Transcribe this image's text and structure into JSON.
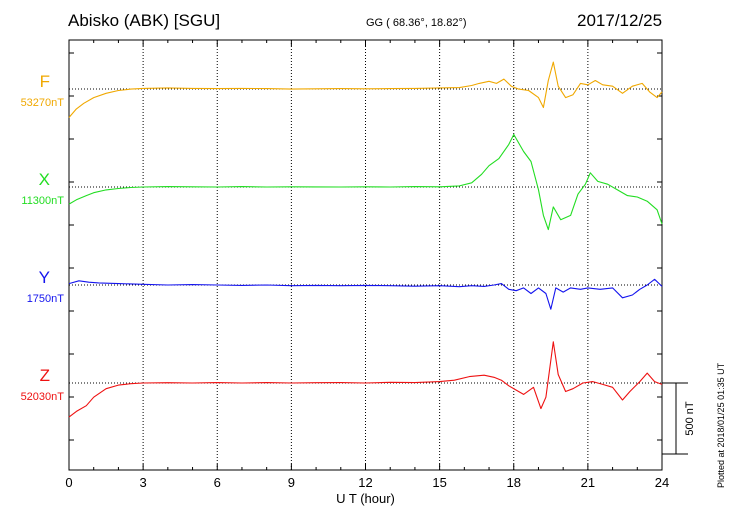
{
  "header": {
    "station": "Abisko (ABK)  [SGU]",
    "coords": "GG ( 68.36°,  18.82°)",
    "date": "2017/12/25"
  },
  "plotted_note": "Plotted at 2018/01/25 01:35 UT",
  "chart_data": {
    "type": "line",
    "xlabel": "U T (hour)",
    "xlim": [
      0,
      24
    ],
    "xticks": [
      0,
      3,
      6,
      9,
      12,
      15,
      18,
      21,
      24
    ],
    "scale_bar": "500 nT",
    "grid": "dotted",
    "series": [
      {
        "name": "F",
        "baseline": "53270nT",
        "color": "#f0a800",
        "offset_nT": -1060,
        "points": [
          [
            0,
            -200
          ],
          [
            0.3,
            -140
          ],
          [
            0.6,
            -100
          ],
          [
            1,
            -60
          ],
          [
            1.5,
            -30
          ],
          [
            2,
            -10
          ],
          [
            2.5,
            0
          ],
          [
            3,
            5
          ],
          [
            4,
            8
          ],
          [
            5,
            5
          ],
          [
            6,
            3
          ],
          [
            7,
            5
          ],
          [
            8,
            3
          ],
          [
            9,
            0
          ],
          [
            10,
            2
          ],
          [
            11,
            3
          ],
          [
            12,
            2
          ],
          [
            13,
            3
          ],
          [
            14,
            5
          ],
          [
            15,
            8
          ],
          [
            15.8,
            10
          ],
          [
            16.3,
            25
          ],
          [
            16.6,
            40
          ],
          [
            17,
            55
          ],
          [
            17.3,
            40
          ],
          [
            17.6,
            70
          ],
          [
            17.9,
            20
          ],
          [
            18.2,
            0
          ],
          [
            18.6,
            -10
          ],
          [
            19,
            -60
          ],
          [
            19.2,
            -130
          ],
          [
            19.4,
            60
          ],
          [
            19.6,
            190
          ],
          [
            19.8,
            20
          ],
          [
            20.1,
            -60
          ],
          [
            20.4,
            -40
          ],
          [
            20.7,
            40
          ],
          [
            21,
            30
          ],
          [
            21.3,
            60
          ],
          [
            21.6,
            30
          ],
          [
            22,
            20
          ],
          [
            22.4,
            -30
          ],
          [
            22.8,
            20
          ],
          [
            23.2,
            40
          ],
          [
            23.5,
            -20
          ],
          [
            23.8,
            -60
          ],
          [
            24,
            -20
          ]
        ]
      },
      {
        "name": "X",
        "baseline": "11300nT",
        "color": "#22dd22",
        "offset_nT": -1750,
        "points": [
          [
            0,
            -120
          ],
          [
            0.3,
            -90
          ],
          [
            0.7,
            -60
          ],
          [
            1,
            -40
          ],
          [
            1.5,
            -20
          ],
          [
            2,
            -10
          ],
          [
            2.5,
            -3
          ],
          [
            3,
            0
          ],
          [
            4,
            3
          ],
          [
            5,
            2
          ],
          [
            6,
            0
          ],
          [
            7,
            3
          ],
          [
            8,
            0
          ],
          [
            9,
            2
          ],
          [
            10,
            1
          ],
          [
            11,
            0
          ],
          [
            12,
            2
          ],
          [
            13,
            0
          ],
          [
            14,
            3
          ],
          [
            15,
            2
          ],
          [
            15.8,
            8
          ],
          [
            16.3,
            30
          ],
          [
            16.7,
            90
          ],
          [
            17,
            150
          ],
          [
            17.4,
            200
          ],
          [
            17.8,
            300
          ],
          [
            18,
            370
          ],
          [
            18.4,
            250
          ],
          [
            18.7,
            180
          ],
          [
            19,
            -20
          ],
          [
            19.2,
            -200
          ],
          [
            19.4,
            -300
          ],
          [
            19.6,
            -140
          ],
          [
            19.9,
            -230
          ],
          [
            20.3,
            -200
          ],
          [
            20.6,
            -50
          ],
          [
            20.9,
            20
          ],
          [
            21.1,
            100
          ],
          [
            21.4,
            40
          ],
          [
            21.8,
            20
          ],
          [
            22.2,
            -20
          ],
          [
            22.6,
            -60
          ],
          [
            23,
            -70
          ],
          [
            23.4,
            -100
          ],
          [
            23.8,
            -160
          ],
          [
            24,
            -260
          ]
        ]
      },
      {
        "name": "Y",
        "baseline": "1750nT",
        "color": "#1414ee",
        "offset_nT": -2440,
        "points": [
          [
            0,
            10
          ],
          [
            0.4,
            30
          ],
          [
            0.8,
            20
          ],
          [
            1.2,
            15
          ],
          [
            2,
            10
          ],
          [
            3,
            5
          ],
          [
            4,
            0
          ],
          [
            5,
            3
          ],
          [
            6,
            0
          ],
          [
            7,
            -3
          ],
          [
            8,
            0
          ],
          [
            9,
            -5
          ],
          [
            10,
            -3
          ],
          [
            11,
            -5
          ],
          [
            12,
            -3
          ],
          [
            13,
            -5
          ],
          [
            14,
            -8
          ],
          [
            15,
            -5
          ],
          [
            15.8,
            -12
          ],
          [
            16.3,
            -5
          ],
          [
            16.8,
            -10
          ],
          [
            17.2,
            0
          ],
          [
            17.5,
            10
          ],
          [
            17.8,
            -30
          ],
          [
            18.1,
            -40
          ],
          [
            18.4,
            -20
          ],
          [
            18.7,
            -60
          ],
          [
            19,
            -20
          ],
          [
            19.3,
            -60
          ],
          [
            19.5,
            -170
          ],
          [
            19.7,
            -20
          ],
          [
            20,
            -50
          ],
          [
            20.3,
            -20
          ],
          [
            20.7,
            -30
          ],
          [
            21,
            -20
          ],
          [
            21.5,
            -30
          ],
          [
            22,
            -20
          ],
          [
            22.4,
            -90
          ],
          [
            22.8,
            -70
          ],
          [
            23.1,
            -30
          ],
          [
            23.4,
            0
          ],
          [
            23.7,
            40
          ],
          [
            24,
            -10
          ]
        ]
      },
      {
        "name": "Z",
        "baseline": "52030nT",
        "color": "#ee1111",
        "offset_nT": -3130,
        "points": [
          [
            0,
            -240
          ],
          [
            0.3,
            -200
          ],
          [
            0.7,
            -160
          ],
          [
            1,
            -100
          ],
          [
            1.5,
            -40
          ],
          [
            2,
            -15
          ],
          [
            2.5,
            -5
          ],
          [
            3,
            0
          ],
          [
            4,
            2
          ],
          [
            5,
            0
          ],
          [
            6,
            3
          ],
          [
            7,
            0
          ],
          [
            8,
            3
          ],
          [
            9,
            0
          ],
          [
            10,
            2
          ],
          [
            11,
            3
          ],
          [
            12,
            0
          ],
          [
            13,
            5
          ],
          [
            14,
            3
          ],
          [
            15,
            10
          ],
          [
            15.6,
            20
          ],
          [
            16.2,
            45
          ],
          [
            16.8,
            55
          ],
          [
            17.2,
            40
          ],
          [
            17.5,
            20
          ],
          [
            17.8,
            -20
          ],
          [
            18.1,
            -50
          ],
          [
            18.4,
            -80
          ],
          [
            18.8,
            -30
          ],
          [
            19.1,
            -180
          ],
          [
            19.3,
            -100
          ],
          [
            19.6,
            290
          ],
          [
            19.8,
            60
          ],
          [
            20.1,
            -60
          ],
          [
            20.4,
            -40
          ],
          [
            20.8,
            0
          ],
          [
            21.2,
            10
          ],
          [
            21.6,
            -10
          ],
          [
            22,
            -30
          ],
          [
            22.4,
            -120
          ],
          [
            22.7,
            -60
          ],
          [
            23.1,
            10
          ],
          [
            23.4,
            70
          ],
          [
            23.7,
            10
          ],
          [
            24,
            -10
          ]
        ]
      }
    ]
  }
}
